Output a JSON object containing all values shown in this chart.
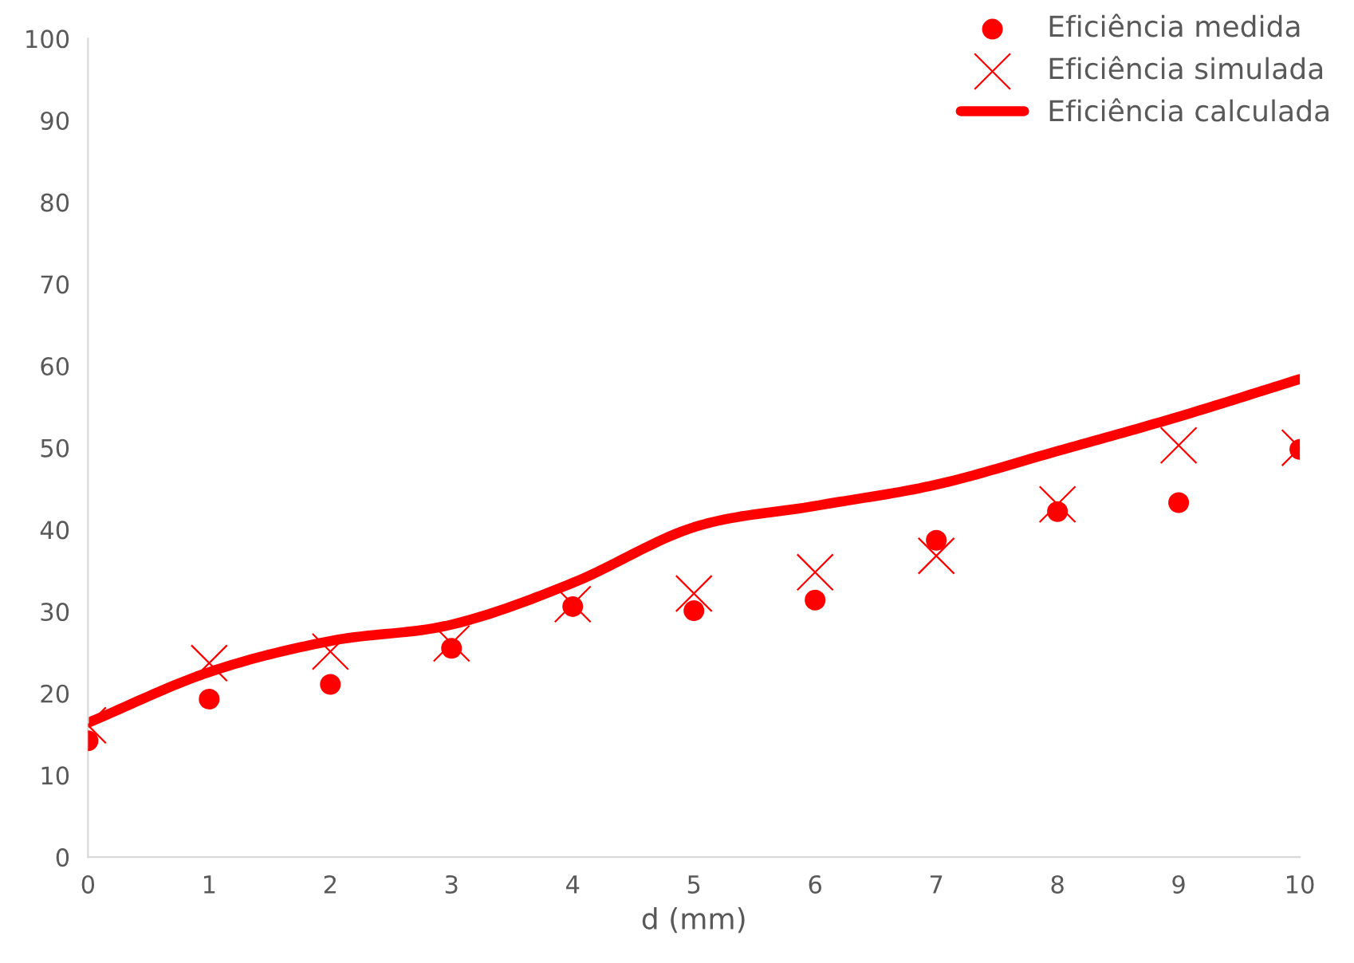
{
  "chart_data": {
    "type": "scatter",
    "xlabel": "d (mm)",
    "x": [
      0,
      1,
      2,
      3,
      4,
      5,
      6,
      7,
      8,
      9,
      10
    ],
    "xlim": [
      0,
      10
    ],
    "xticks": [
      0,
      1,
      2,
      3,
      4,
      5,
      6,
      7,
      8,
      9,
      10
    ],
    "ylim": [
      0,
      100
    ],
    "yticks": [
      0,
      10,
      20,
      30,
      40,
      50,
      60,
      70,
      80,
      90,
      100
    ],
    "grid": false,
    "legend": "top right",
    "series": [
      {
        "name": "Eficiência medida",
        "marker": "circle",
        "color": "#ff0000",
        "values": [
          14.2,
          19.3,
          21.1,
          25.5,
          30.6,
          30.1,
          31.4,
          38.7,
          42.2,
          43.3,
          49.8
        ]
      },
      {
        "name": "Eficiência simulada",
        "marker": "cross",
        "color": "#ff0000",
        "values": [
          16.1,
          23.7,
          25.1,
          26.1,
          30.9,
          32.2,
          34.8,
          36.8,
          43.1,
          50.3,
          50.0
        ]
      },
      {
        "name": "Eficiência calculada",
        "type": "line",
        "marker": "none",
        "line_style": "solid",
        "color": "#ff0000",
        "values": [
          16.4,
          22.6,
          26.4,
          28.4,
          33.5,
          40.3,
          42.9,
          45.5,
          49.6,
          53.8,
          58.4
        ]
      }
    ]
  }
}
